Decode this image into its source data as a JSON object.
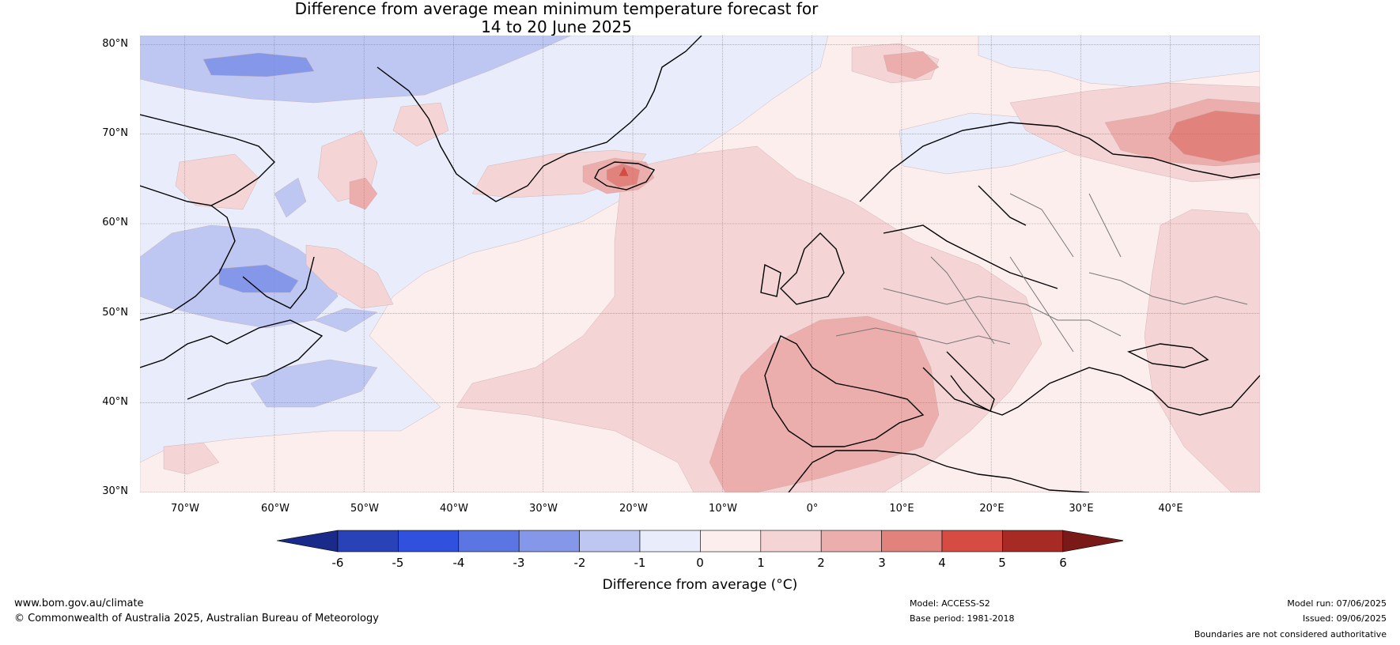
{
  "title": {
    "line1": "Difference from average mean minimum temperature forecast for",
    "line2": "14 to 20 June 2025"
  },
  "map": {
    "lat_labels": [
      "80°N",
      "70°N",
      "60°N",
      "50°N",
      "40°N",
      "30°N"
    ],
    "lon_labels": [
      "70°W",
      "60°W",
      "50°W",
      "40°W",
      "30°W",
      "20°W",
      "10°W",
      "0°",
      "10°E",
      "20°E",
      "30°E",
      "40°E"
    ],
    "extent": {
      "lon": [
        -75,
        50
      ],
      "lat": [
        30,
        81
      ]
    },
    "colors": {
      "neg_3_to_4": "#5b75e2",
      "neg_2_to_3": "#8497e8",
      "neg_1_to_2": "#bec7f2",
      "neg_0_to_1": "#e9ecfb",
      "pos_0_to_1": "#fdeeee",
      "pos_1_to_2": "#f4d4d4",
      "pos_2_to_3": "#ebaeac",
      "pos_3_to_4": "#e2827c",
      "pos_4_to_5": "#d64b42"
    }
  },
  "colorbar": {
    "ticks": [
      "-6",
      "-5",
      "-4",
      "-3",
      "-2",
      "-1",
      "0",
      "1",
      "2",
      "3",
      "4",
      "5",
      "6"
    ],
    "colors": [
      "#1a2a8a",
      "#2a42b8",
      "#3050de",
      "#5b75e2",
      "#8497e8",
      "#bec7f2",
      "#e9ecfb",
      "#fdeeee",
      "#f4d4d4",
      "#ebaeac",
      "#e2827c",
      "#d64b42",
      "#a82a24",
      "#7a1a18"
    ],
    "label": "Difference from average (°C)"
  },
  "footer": {
    "url": "www.bom.gov.au/climate",
    "copyright": "© Commonwealth of Australia 2025, Australian Bureau of Meteorology",
    "model": "Model: ACCESS-S2",
    "base_period": "Base period: 1981-2018",
    "model_run": "Model run: 07/06/2025",
    "issued": "Issued: 09/06/2025",
    "disclaimer": "Boundaries are not considered authoritative"
  }
}
